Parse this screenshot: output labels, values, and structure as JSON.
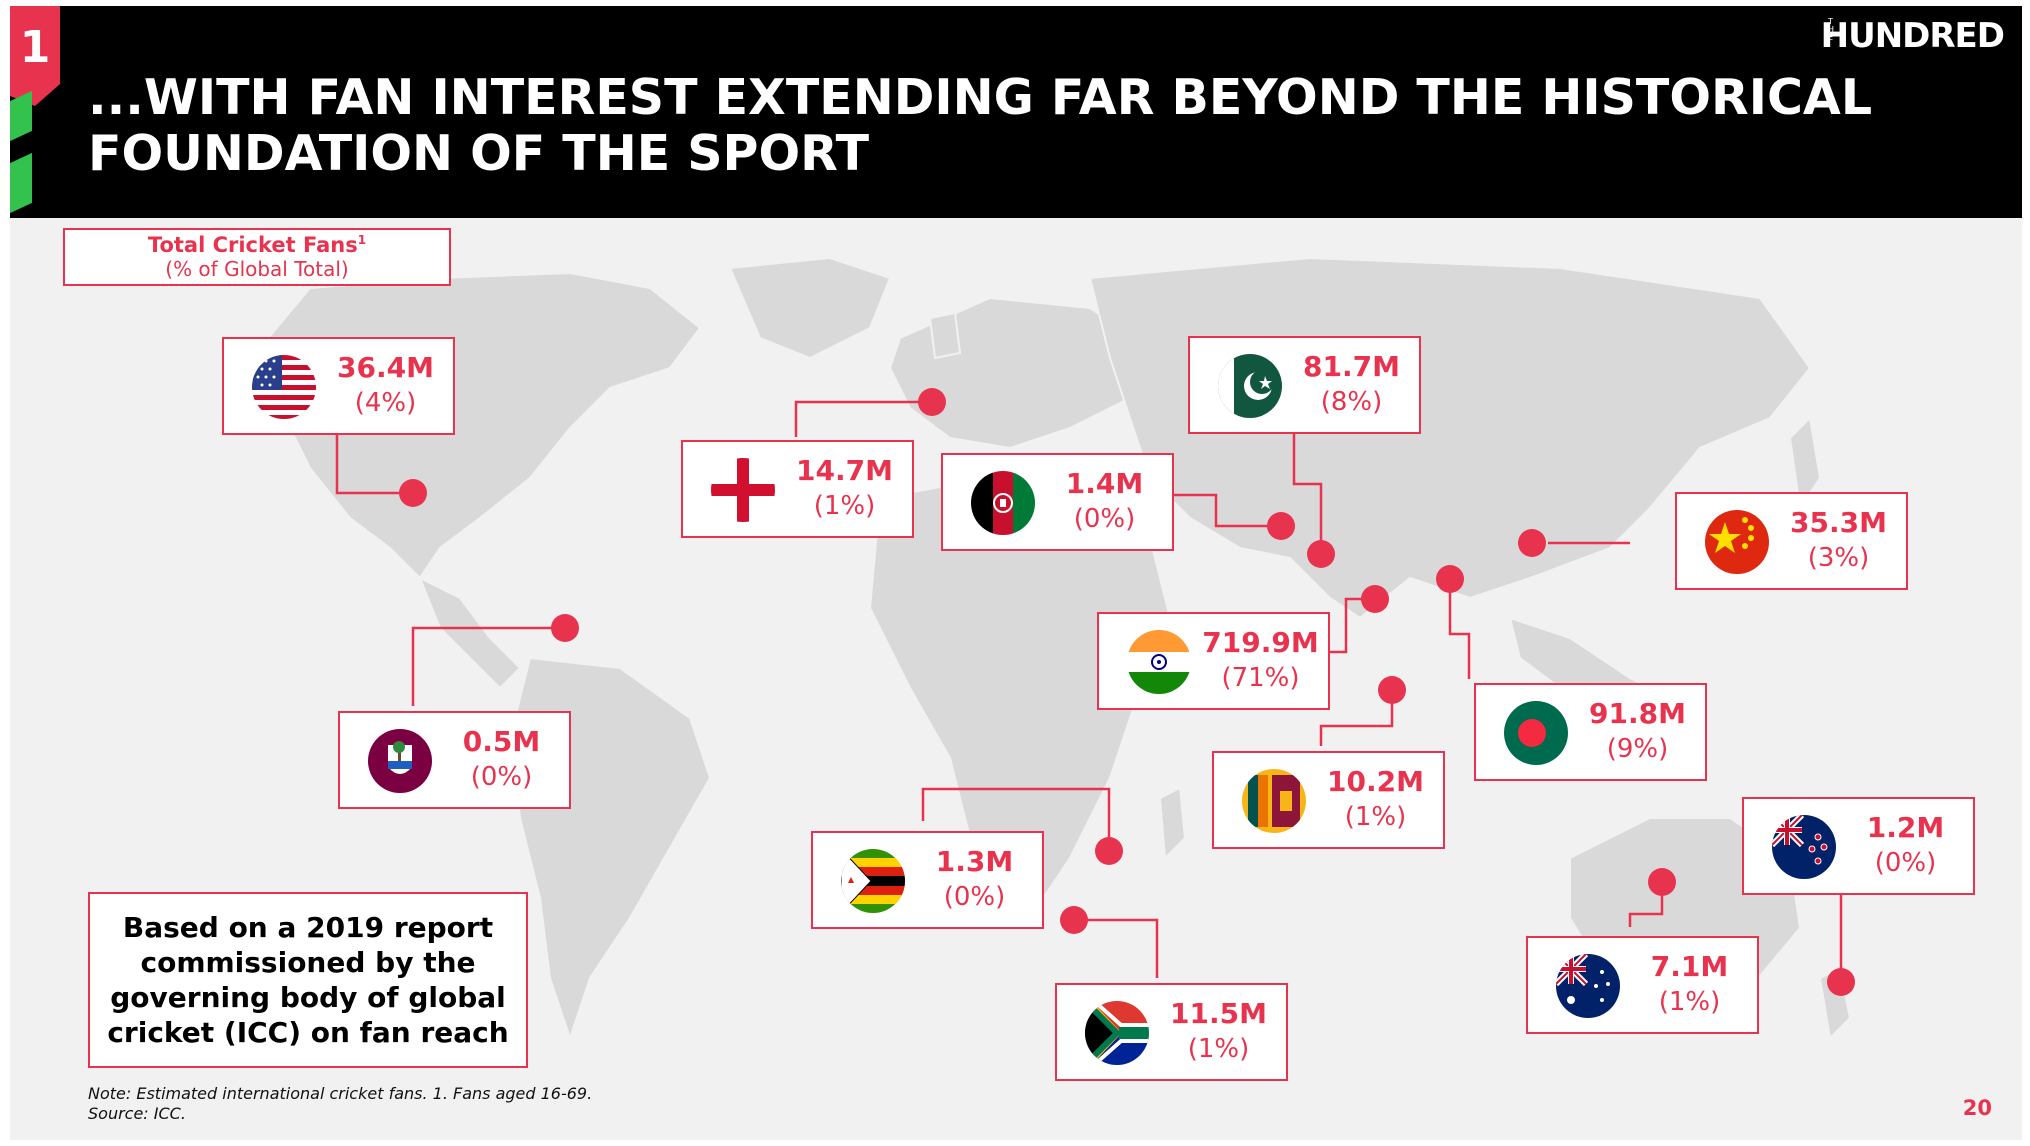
{
  "header": {
    "section_number": "1",
    "title_line1": "...WITH FAN INTEREST EXTENDING FAR BEYOND THE HISTORICAL",
    "title_line2": "FOUNDATION OF THE SPORT",
    "brand": "HUNDRED",
    "brand_prefix": "THE"
  },
  "legend": {
    "title": "Total Cricket Fans",
    "footnote_mark": "1",
    "subtitle": "(% of Global Total)"
  },
  "countries": [
    {
      "id": "usa",
      "flag": "usa-flag",
      "value": "36.4M",
      "percent": "(4%)"
    },
    {
      "id": "england",
      "flag": "england-flag",
      "value": "14.7M",
      "percent": "(1%)"
    },
    {
      "id": "afghanistan",
      "flag": "afghanistan-flag",
      "value": "1.4M",
      "percent": "(0%)"
    },
    {
      "id": "pakistan",
      "flag": "pakistan-flag",
      "value": "81.7M",
      "percent": "(8%)"
    },
    {
      "id": "china",
      "flag": "china-flag",
      "value": "35.3M",
      "percent": "(3%)"
    },
    {
      "id": "india",
      "flag": "india-flag",
      "value": "719.9M",
      "percent": "(71%)"
    },
    {
      "id": "bangladesh",
      "flag": "bangladesh-flag",
      "value": "91.8M",
      "percent": "(9%)"
    },
    {
      "id": "west-indies",
      "flag": "west-indies-flag",
      "value": "0.5M",
      "percent": "(0%)"
    },
    {
      "id": "sri-lanka",
      "flag": "sri-lanka-flag",
      "value": "10.2M",
      "percent": "(1%)"
    },
    {
      "id": "zimbabwe",
      "flag": "zimbabwe-flag",
      "value": "1.3M",
      "percent": "(0%)"
    },
    {
      "id": "new-zealand",
      "flag": "new-zealand-flag",
      "value": "1.2M",
      "percent": "(0%)"
    },
    {
      "id": "australia",
      "flag": "australia-flag",
      "value": "7.1M",
      "percent": "(1%)"
    },
    {
      "id": "south-africa",
      "flag": "south-africa-flag",
      "value": "11.5M",
      "percent": "(1%)"
    }
  ],
  "report_note": {
    "line1": "Based on a 2019 report",
    "line2": "commissioned by the",
    "line3": "governing body of global",
    "line4": "cricket (ICC) on fan reach"
  },
  "footnote": {
    "note": "Note: Estimated international cricket fans. 1. Fans aged 16-69.",
    "source": "Source: ICC."
  },
  "page_number": "20",
  "colors": {
    "accent": "#e8334e",
    "header_bg": "#000000",
    "map_land": "#d9d9d9",
    "background": "#f1f1f1",
    "stripe": "#33c24d"
  }
}
